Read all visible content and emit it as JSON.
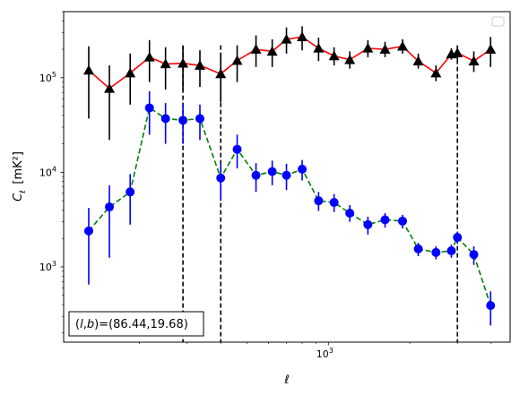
{
  "chart_data": {
    "type": "line",
    "title": "",
    "xlabel": "ℓ",
    "ylabel": "C_ℓ [mK²]",
    "xscale": "log",
    "yscale": "log",
    "xlim": [
      105,
      4700
    ],
    "ylim": [
      160,
      500000
    ],
    "x_tick_labels": [
      {
        "value": 1000,
        "base": "10",
        "exp": "3"
      }
    ],
    "y_tick_labels": [
      {
        "value": 1000,
        "base": "10",
        "exp": "3"
      },
      {
        "value": 10000,
        "base": "10",
        "exp": "4"
      },
      {
        "value": 100000,
        "base": "10",
        "exp": "5"
      }
    ],
    "grid": false,
    "legend": {
      "placement": "top-right",
      "entries": []
    },
    "annotation": {
      "text": "(l,b)=(86.44,19.68)",
      "placement": "bottom-left"
    },
    "vlines": [
      {
        "x": 290,
        "style": "dashed",
        "color": "#000000"
      },
      {
        "x": 400,
        "style": "dashed",
        "color": "#000000"
      },
      {
        "x": 3000,
        "style": "dashed",
        "color": "#000000"
      }
    ],
    "series": [
      {
        "line_color": "#ff0000",
        "line_style": "solid",
        "marker": "triangle",
        "marker_color": "#000000",
        "error_color": "#000000",
        "points": [
          {
            "x": 130,
            "y": 120000,
            "lo": 37000,
            "hi": 215000
          },
          {
            "x": 155,
            "y": 77000,
            "lo": 22000,
            "hi": 135000
          },
          {
            "x": 185,
            "y": 112000,
            "lo": 52000,
            "hi": 180000
          },
          {
            "x": 218,
            "y": 165000,
            "lo": 90000,
            "hi": 250000
          },
          {
            "x": 250,
            "y": 140000,
            "lo": 75000,
            "hi": 210000
          },
          {
            "x": 290,
            "y": 142000,
            "lo": 75000,
            "hi": 215000
          },
          {
            "x": 335,
            "y": 135000,
            "lo": 80000,
            "hi": 195000
          },
          {
            "x": 400,
            "y": 110000,
            "lo": 55000,
            "hi": 175000
          },
          {
            "x": 460,
            "y": 152000,
            "lo": 90000,
            "hi": 220000
          },
          {
            "x": 540,
            "y": 200000,
            "lo": 130000,
            "hi": 280000
          },
          {
            "x": 620,
            "y": 190000,
            "lo": 130000,
            "hi": 255000
          },
          {
            "x": 700,
            "y": 255000,
            "lo": 180000,
            "hi": 340000
          },
          {
            "x": 800,
            "y": 270000,
            "lo": 195000,
            "hi": 350000
          },
          {
            "x": 920,
            "y": 205000,
            "lo": 150000,
            "hi": 265000
          },
          {
            "x": 1050,
            "y": 170000,
            "lo": 135000,
            "hi": 210000
          },
          {
            "x": 1200,
            "y": 155000,
            "lo": 125000,
            "hi": 190000
          },
          {
            "x": 1400,
            "y": 205000,
            "lo": 165000,
            "hi": 250000
          },
          {
            "x": 1620,
            "y": 200000,
            "lo": 165000,
            "hi": 240000
          },
          {
            "x": 1880,
            "y": 215000,
            "lo": 180000,
            "hi": 255000
          },
          {
            "x": 2150,
            "y": 150000,
            "lo": 125000,
            "hi": 180000
          },
          {
            "x": 2500,
            "y": 112000,
            "lo": 92000,
            "hi": 135000
          },
          {
            "x": 2850,
            "y": 178000,
            "lo": 155000,
            "hi": 205000
          },
          {
            "x": 3000,
            "y": 183000,
            "lo": 155000,
            "hi": 215000
          },
          {
            "x": 3450,
            "y": 150000,
            "lo": 115000,
            "hi": 190000
          },
          {
            "x": 3980,
            "y": 200000,
            "lo": 130000,
            "hi": 270000
          }
        ]
      },
      {
        "line_color": "#008000",
        "line_style": "dashed",
        "marker": "circle",
        "marker_color": "#0000ff",
        "error_color": "#0000ff",
        "points": [
          {
            "x": 130,
            "y": 2400,
            "lo": 650,
            "hi": 4200
          },
          {
            "x": 155,
            "y": 4300,
            "lo": 1250,
            "hi": 7300
          },
          {
            "x": 185,
            "y": 6200,
            "lo": 2800,
            "hi": 9600
          },
          {
            "x": 218,
            "y": 48000,
            "lo": 25000,
            "hi": 72000
          },
          {
            "x": 250,
            "y": 37000,
            "lo": 20000,
            "hi": 54000
          },
          {
            "x": 290,
            "y": 35500,
            "lo": 20000,
            "hi": 52000
          },
          {
            "x": 335,
            "y": 37000,
            "lo": 22000,
            "hi": 52000
          },
          {
            "x": 400,
            "y": 8700,
            "lo": 5000,
            "hi": 12500
          },
          {
            "x": 460,
            "y": 17500,
            "lo": 11000,
            "hi": 25000
          },
          {
            "x": 540,
            "y": 9300,
            "lo": 6200,
            "hi": 12500
          },
          {
            "x": 620,
            "y": 10200,
            "lo": 7300,
            "hi": 13300
          },
          {
            "x": 700,
            "y": 9300,
            "lo": 6500,
            "hi": 12300
          },
          {
            "x": 800,
            "y": 10800,
            "lo": 8200,
            "hi": 13500
          },
          {
            "x": 920,
            "y": 5000,
            "lo": 3900,
            "hi": 6200
          },
          {
            "x": 1050,
            "y": 4800,
            "lo": 3800,
            "hi": 5900
          },
          {
            "x": 1200,
            "y": 3700,
            "lo": 3000,
            "hi": 4500
          },
          {
            "x": 1400,
            "y": 2800,
            "lo": 2200,
            "hi": 3400
          },
          {
            "x": 1620,
            "y": 3150,
            "lo": 2600,
            "hi": 3700
          },
          {
            "x": 1880,
            "y": 3050,
            "lo": 2550,
            "hi": 3550
          },
          {
            "x": 2150,
            "y": 1550,
            "lo": 1300,
            "hi": 1800
          },
          {
            "x": 2500,
            "y": 1420,
            "lo": 1200,
            "hi": 1650
          },
          {
            "x": 2850,
            "y": 1480,
            "lo": 1250,
            "hi": 1720
          },
          {
            "x": 3000,
            "y": 2050,
            "lo": 1750,
            "hi": 2350
          },
          {
            "x": 3450,
            "y": 1350,
            "lo": 1050,
            "hi": 1650
          },
          {
            "x": 3980,
            "y": 390,
            "lo": 240,
            "hi": 550
          }
        ]
      }
    ]
  }
}
